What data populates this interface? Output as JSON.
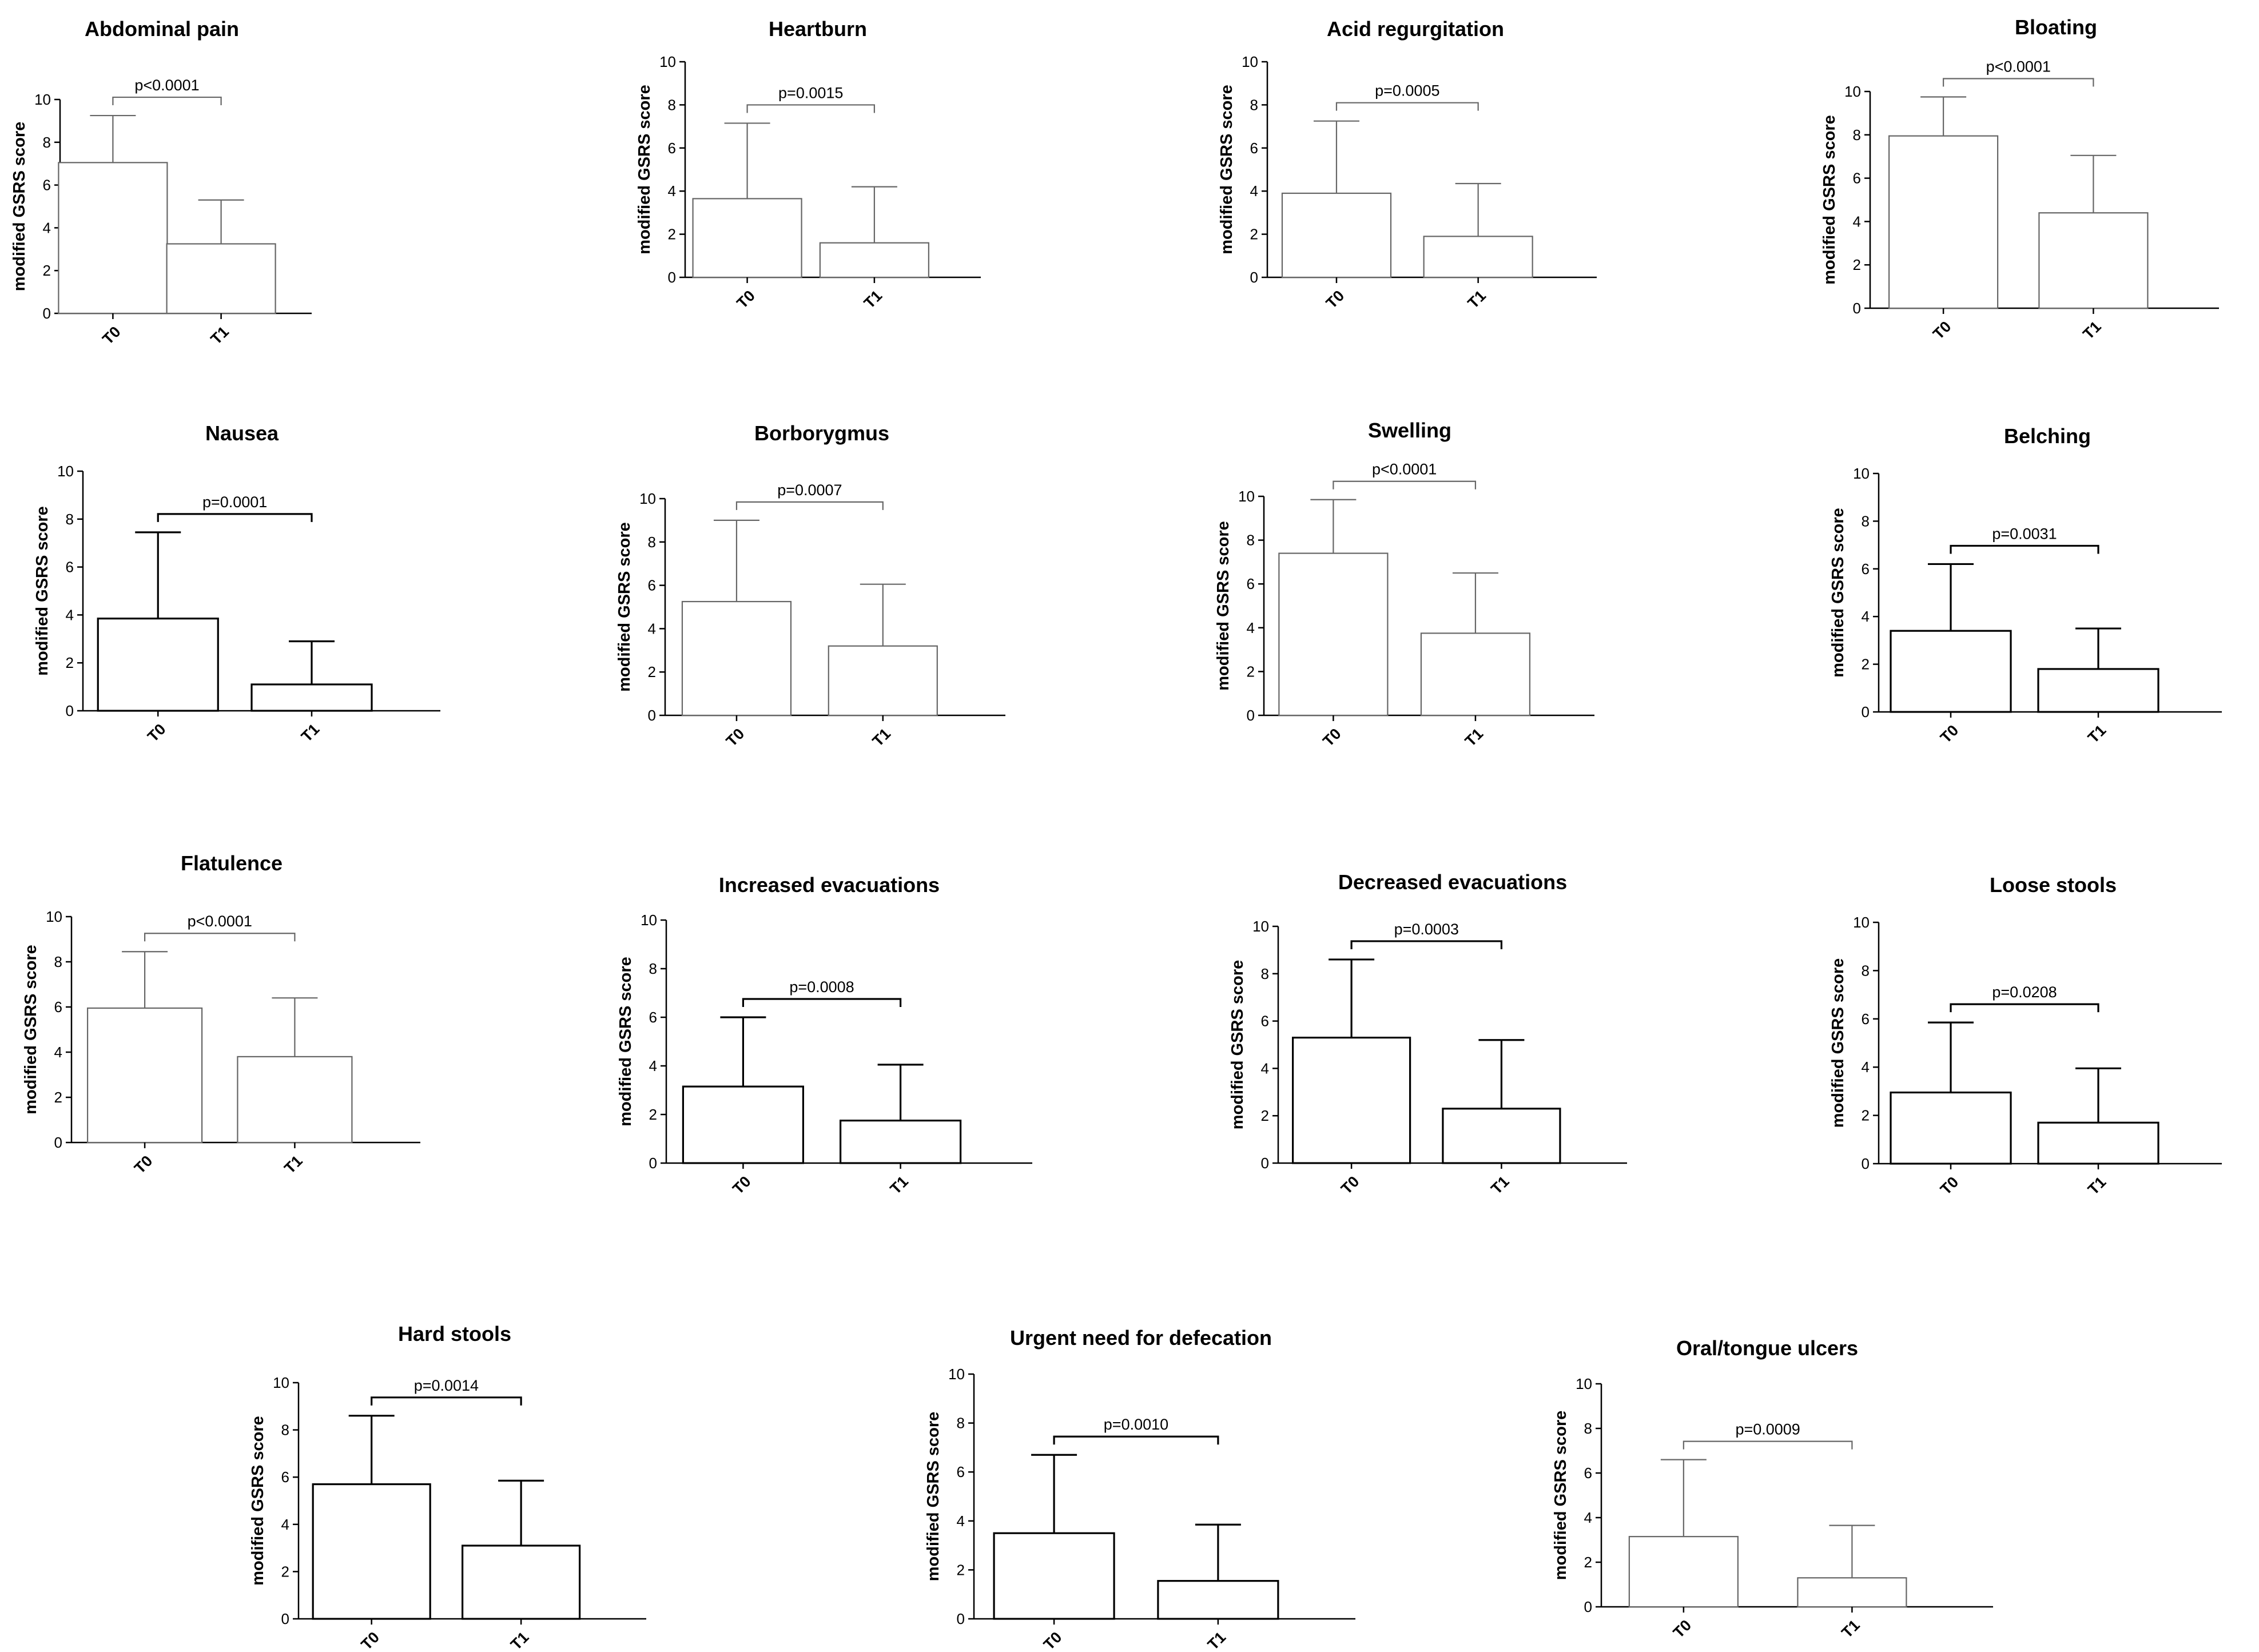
{
  "chart_data": [
    {
      "type": "bar",
      "title": "Abdominal pain",
      "ylabel": "modified GSRS score",
      "categories": [
        "T0",
        "T1"
      ],
      "values": [
        7.05,
        3.25
      ],
      "error": [
        2.2,
        2.05
      ],
      "ylim": [
        0,
        10
      ],
      "yticks": [
        0,
        2,
        4,
        6,
        8,
        10
      ],
      "pvalue": "p<0.0001"
    },
    {
      "type": "bar",
      "title": "Heartburn",
      "ylabel": "modified GSRS score",
      "categories": [
        "T0",
        "T1"
      ],
      "values": [
        3.65,
        1.6
      ],
      "error": [
        3.5,
        2.6
      ],
      "ylim": [
        0,
        10
      ],
      "yticks": [
        0,
        2,
        4,
        6,
        8,
        10
      ],
      "pvalue": "p=0.0015"
    },
    {
      "type": "bar",
      "title": "Acid regurgitation",
      "ylabel": "modified GSRS score",
      "categories": [
        "T0",
        "T1"
      ],
      "values": [
        3.9,
        1.9
      ],
      "error": [
        3.35,
        2.45
      ],
      "ylim": [
        0,
        10
      ],
      "yticks": [
        0,
        2,
        4,
        6,
        8,
        10
      ],
      "pvalue": "p=0.0005"
    },
    {
      "type": "bar",
      "title": "Bloating",
      "ylabel": "modified GSRS score",
      "categories": [
        "T0",
        "T1"
      ],
      "values": [
        7.95,
        4.4
      ],
      "error": [
        1.8,
        2.65
      ],
      "ylim": [
        0,
        10
      ],
      "yticks": [
        0,
        2,
        4,
        6,
        8,
        10
      ],
      "pvalue": "p<0.0001"
    },
    {
      "type": "bar",
      "title": "Nausea",
      "ylabel": "modified GSRS score",
      "categories": [
        "T0",
        "T1"
      ],
      "values": [
        3.85,
        1.1
      ],
      "error": [
        3.6,
        1.8
      ],
      "ylim": [
        0,
        10
      ],
      "yticks": [
        0,
        2,
        4,
        6,
        8,
        10
      ],
      "pvalue": "p=0.0001"
    },
    {
      "type": "bar",
      "title": "Borborygmus",
      "ylabel": "modified GSRS score",
      "categories": [
        "T0",
        "T1"
      ],
      "values": [
        5.25,
        3.2
      ],
      "error": [
        3.75,
        2.85
      ],
      "ylim": [
        0,
        10
      ],
      "yticks": [
        0,
        2,
        4,
        6,
        8,
        10
      ],
      "pvalue": "p=0.0007"
    },
    {
      "type": "bar",
      "title": "Swelling",
      "ylabel": "modified GSRS score",
      "categories": [
        "T0",
        "T1"
      ],
      "values": [
        7.4,
        3.75
      ],
      "error": [
        2.45,
        2.75
      ],
      "ylim": [
        0,
        10
      ],
      "yticks": [
        0,
        2,
        4,
        6,
        8,
        10
      ],
      "pvalue": "p<0.0001"
    },
    {
      "type": "bar",
      "title": "Belching",
      "ylabel": "modified GSRS score",
      "categories": [
        "T0",
        "T1"
      ],
      "values": [
        3.4,
        1.8
      ],
      "error": [
        2.8,
        1.7
      ],
      "ylim": [
        0,
        10
      ],
      "yticks": [
        0,
        2,
        4,
        6,
        8,
        10
      ],
      "pvalue": "p=0.0031"
    },
    {
      "type": "bar",
      "title": "Flatulence",
      "ylabel": "modified GSRS score",
      "categories": [
        "T0",
        "T1"
      ],
      "values": [
        5.95,
        3.8
      ],
      "error": [
        2.5,
        2.6
      ],
      "ylim": [
        0,
        10
      ],
      "yticks": [
        0,
        2,
        4,
        6,
        8,
        10
      ],
      "pvalue": "p<0.0001"
    },
    {
      "type": "bar",
      "title": "Increased evacuations",
      "ylabel": "modified GSRS score",
      "categories": [
        "T0",
        "T1"
      ],
      "values": [
        3.15,
        1.75
      ],
      "error": [
        2.85,
        2.3
      ],
      "ylim": [
        0,
        10
      ],
      "yticks": [
        0,
        2,
        4,
        6,
        8,
        10
      ],
      "pvalue": "p=0.0008"
    },
    {
      "type": "bar",
      "title": "Decreased evacuations",
      "ylabel": "modified GSRS score",
      "categories": [
        "T0",
        "T1"
      ],
      "values": [
        5.3,
        2.3
      ],
      "error": [
        3.3,
        2.9
      ],
      "ylim": [
        0,
        10
      ],
      "yticks": [
        0,
        2,
        4,
        6,
        8,
        10
      ],
      "pvalue": "p=0.0003"
    },
    {
      "type": "bar",
      "title": "Loose stools",
      "ylabel": "modified GSRS score",
      "categories": [
        "T0",
        "T1"
      ],
      "values": [
        2.95,
        1.7
      ],
      "error": [
        2.9,
        2.25
      ],
      "ylim": [
        0,
        10
      ],
      "yticks": [
        0,
        2,
        4,
        6,
        8,
        10
      ],
      "pvalue": "p=0.0208"
    },
    {
      "type": "bar",
      "title": "Hard stools",
      "ylabel": "modified GSRS score",
      "categories": [
        "T0",
        "T1"
      ],
      "values": [
        5.7,
        3.1
      ],
      "error": [
        2.9,
        2.75
      ],
      "ylim": [
        0,
        10
      ],
      "yticks": [
        0,
        2,
        4,
        6,
        8,
        10
      ],
      "pvalue": "p=0.0014"
    },
    {
      "type": "bar",
      "title": "Urgent need for defecation",
      "ylabel": "modified GSRS score",
      "categories": [
        "T0",
        "T1"
      ],
      "values": [
        3.5,
        1.55
      ],
      "error": [
        3.2,
        2.3
      ],
      "ylim": [
        0,
        10
      ],
      "yticks": [
        0,
        2,
        4,
        6,
        8,
        10
      ],
      "pvalue": "p=0.0010"
    },
    {
      "type": "bar",
      "title": "Oral/tongue ulcers",
      "ylabel": "modified GSRS score",
      "categories": [
        "T0",
        "T1"
      ],
      "values": [
        3.15,
        1.3
      ],
      "error": [
        3.45,
        2.35
      ],
      "ylim": [
        0,
        10
      ],
      "yticks": [
        0,
        2,
        4,
        6,
        8,
        10
      ],
      "pvalue": "p=0.0009"
    }
  ],
  "style": {
    "bar_fill": "#ffffff",
    "line_color": "#000000",
    "bar_stroke_light": "#666666",
    "bar_stroke_dark": "#000000"
  }
}
